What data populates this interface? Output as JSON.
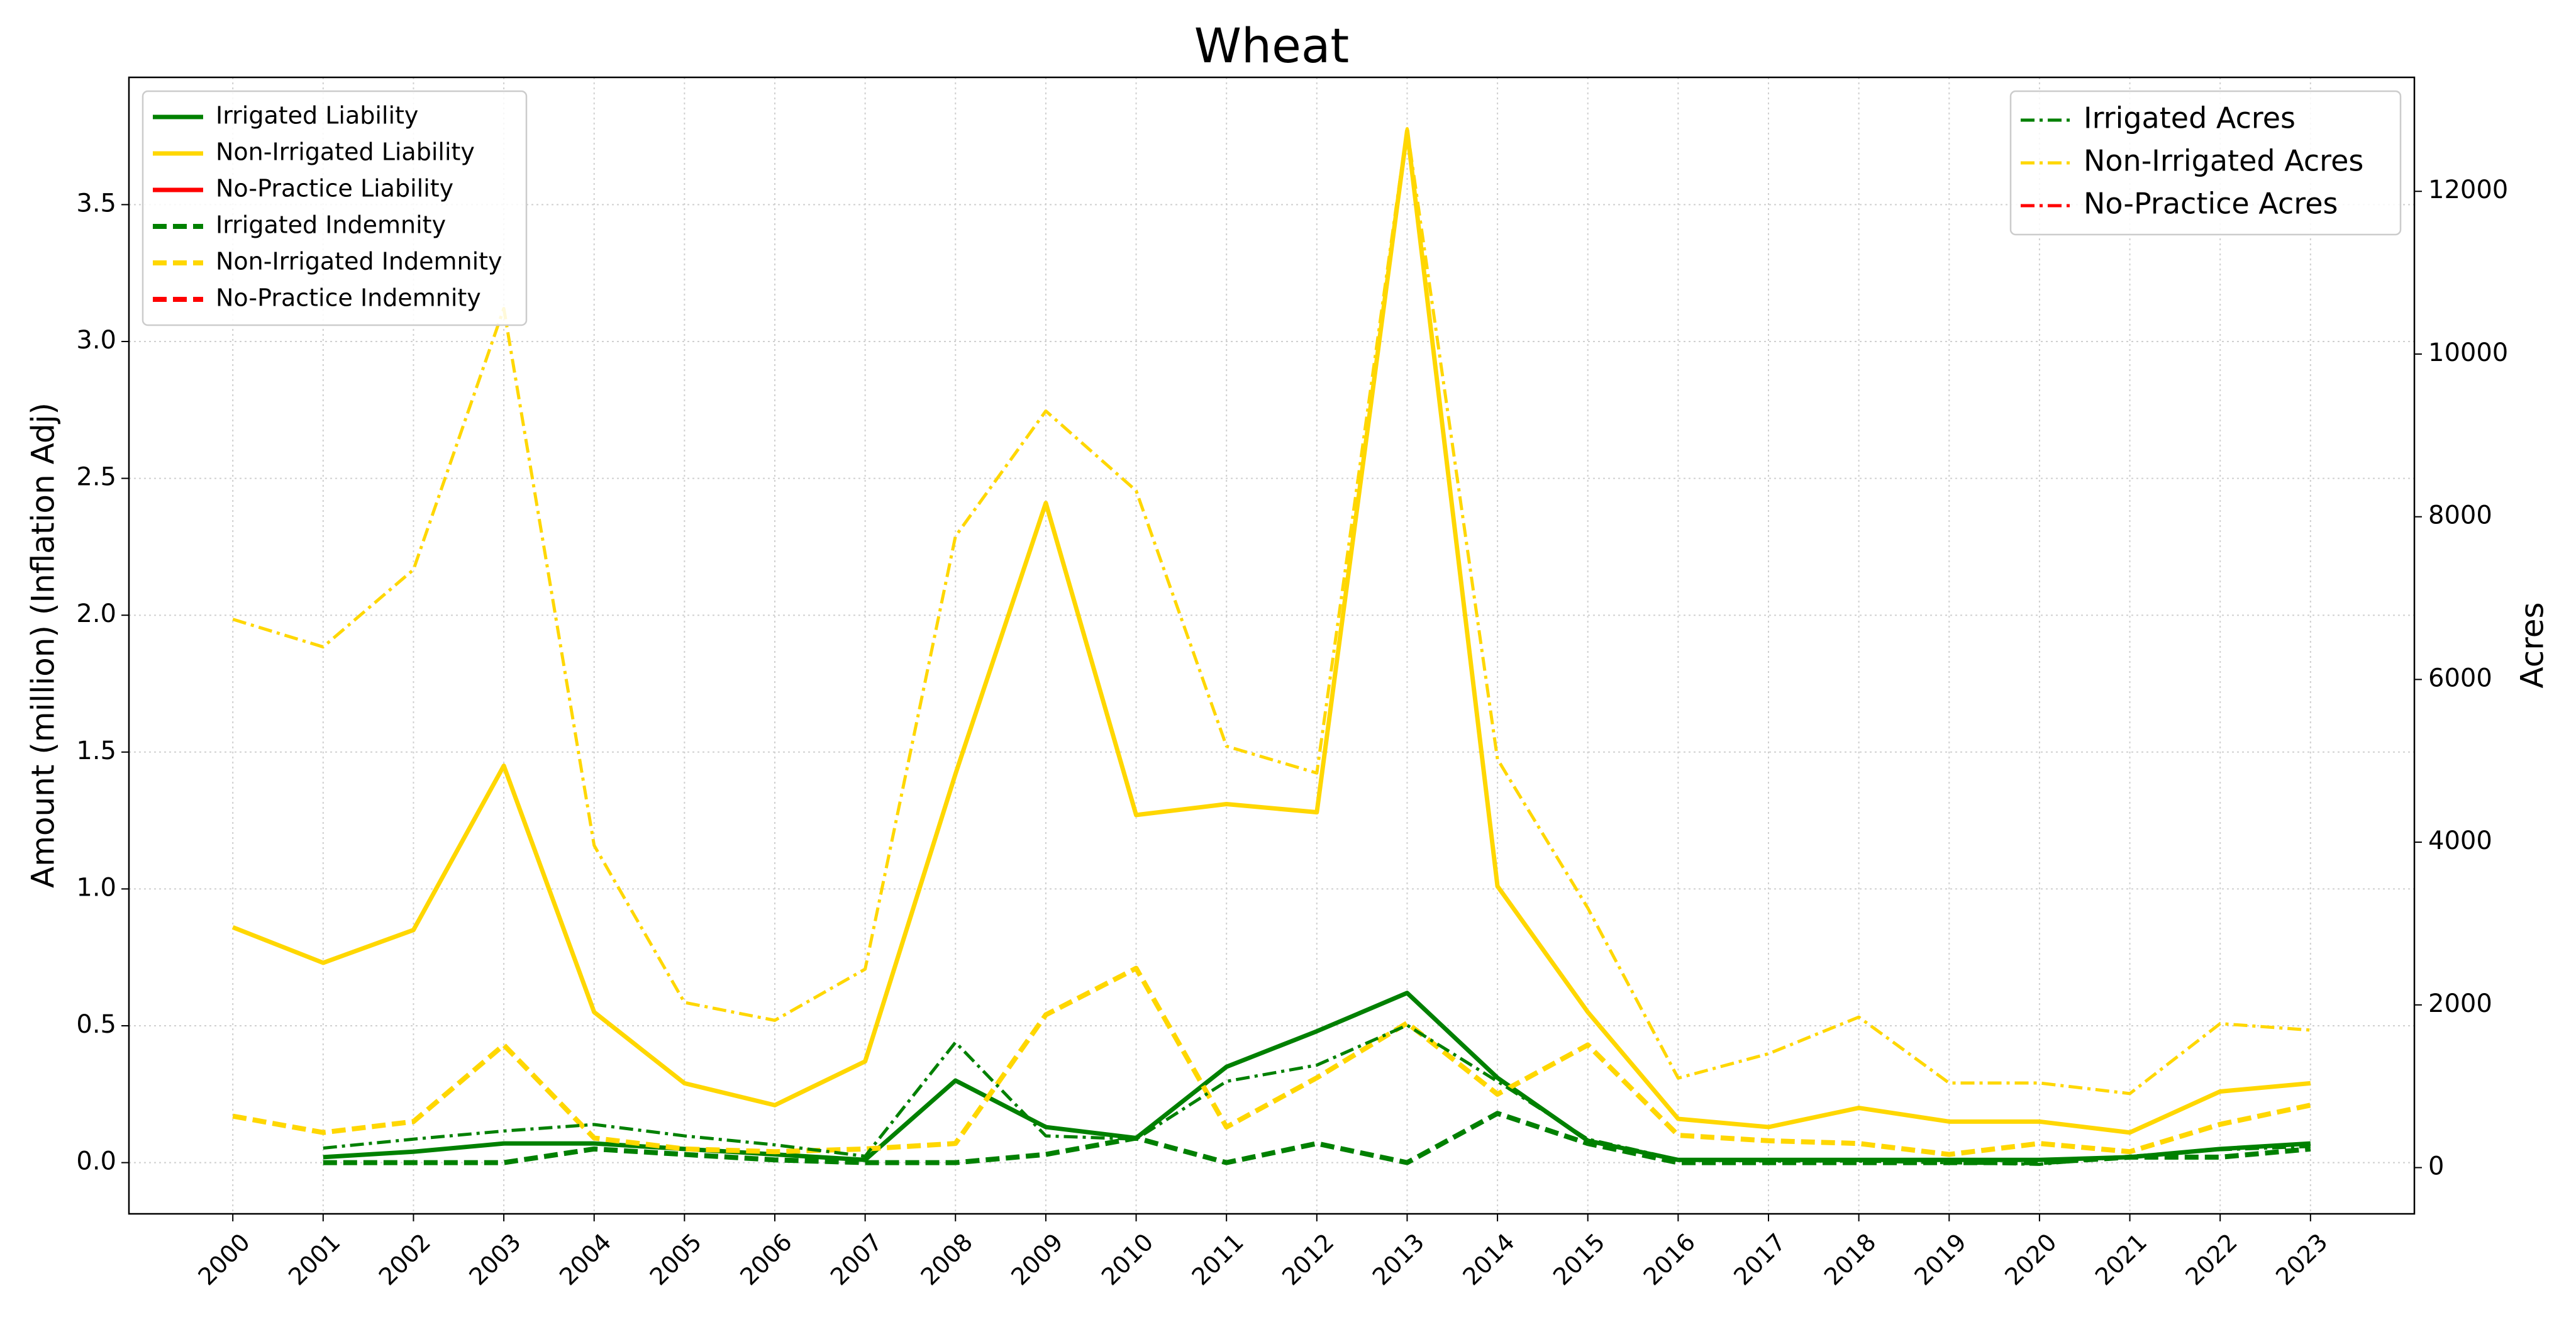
{
  "chart_data": {
    "type": "line",
    "title": "Wheat",
    "y_label": "Amount (million) (Inflation Adj)",
    "y2_label": "Acres",
    "x": [
      2000,
      2001,
      2002,
      2003,
      2004,
      2005,
      2006,
      2007,
      2008,
      2009,
      2010,
      2011,
      2012,
      2013,
      2014,
      2015,
      2016,
      2017,
      2018,
      2019,
      2020,
      2021,
      2022,
      2023
    ],
    "xlim": [
      1998.85,
      2024.15
    ],
    "xticks": [
      2000,
      2001,
      2002,
      2003,
      2004,
      2005,
      2006,
      2007,
      2008,
      2009,
      2010,
      2011,
      2012,
      2013,
      2014,
      2015,
      2016,
      2017,
      2018,
      2019,
      2020,
      2021,
      2022,
      2023
    ],
    "ylim": [
      -0.187,
      3.965
    ],
    "yticks": [
      {
        "value": 0,
        "label": "0.0"
      },
      0.5,
      {
        "value": 1,
        "label": "1.0"
      },
      1.5,
      {
        "value": 2,
        "label": "2.0"
      },
      2.5,
      {
        "value": 3,
        "label": "3.0"
      },
      3.5
    ],
    "y2lim": [
      -568,
      13401
    ],
    "y2ticks": [
      0,
      2000,
      4000,
      6000,
      8000,
      10000,
      12000
    ],
    "grid": true,
    "legend_loc": "upper left",
    "legend2_loc": "upper right",
    "series": [
      {
        "name": "Irrigated Liability",
        "color": "#008000",
        "linestyle": "solid",
        "values": [
          null,
          0.02,
          0.04,
          0.07,
          0.07,
          0.05,
          0.03,
          0.01,
          0.3,
          0.13,
          0.09,
          0.35,
          0.48,
          0.62,
          0.31,
          0.08,
          0.01,
          0.01,
          0.01,
          0.01,
          0.01,
          0.02,
          0.05,
          0.07
        ]
      },
      {
        "name": "Non-Irrigated Liability",
        "color": "#ffd700",
        "linestyle": "solid",
        "values": [
          0.86,
          0.73,
          0.85,
          1.45,
          0.55,
          0.29,
          0.21,
          0.37,
          1.42,
          2.41,
          1.27,
          1.31,
          1.28,
          3.77,
          1.01,
          0.55,
          0.16,
          0.13,
          0.2,
          0.15,
          0.15,
          0.11,
          0.26,
          0.29
        ]
      },
      {
        "name": "No-Practice Liability",
        "color": "#ff0000",
        "linestyle": "solid",
        "values": [
          null,
          null,
          null,
          null,
          null,
          null,
          null,
          null,
          null,
          null,
          null,
          null,
          null,
          null,
          null,
          null,
          null,
          null,
          null,
          null,
          null,
          null,
          null,
          null
        ]
      },
      {
        "name": "Irrigated Indemnity",
        "color": "#008000",
        "linestyle": "dashed",
        "values": [
          null,
          0,
          0,
          0,
          0.05,
          0.03,
          0.01,
          0,
          0,
          0.03,
          0.09,
          0,
          0.07,
          0,
          0.18,
          0.07,
          0,
          0,
          0,
          0,
          0,
          0.02,
          0.02,
          0.05
        ]
      },
      {
        "name": "Non-Irrigated Indemnity",
        "color": "#ffd700",
        "linestyle": "dashed",
        "values": [
          0.17,
          0.11,
          0.15,
          0.43,
          0.09,
          0.05,
          0.04,
          0.05,
          0.07,
          0.54,
          0.71,
          0.13,
          0.31,
          0.51,
          0.25,
          0.43,
          0.1,
          0.08,
          0.07,
          0.03,
          0.07,
          0.04,
          0.14,
          0.21
        ]
      },
      {
        "name": "No-Practice Indemnity",
        "color": "#ff0000",
        "linestyle": "dashed",
        "values": [
          null,
          null,
          null,
          null,
          null,
          null,
          null,
          null,
          null,
          null,
          null,
          null,
          null,
          null,
          null,
          null,
          null,
          null,
          null,
          null,
          null,
          null,
          null,
          null
        ]
      },
      {
        "name": "Irrigated Acres",
        "color": "#008000",
        "linestyle": "dashdot",
        "axis": "y2",
        "values": [
          null,
          240,
          350,
          450,
          530,
          390,
          280,
          140,
          1540,
          390,
          350,
          1060,
          1260,
          1750,
          1060,
          350,
          100,
          80,
          80,
          60,
          40,
          140,
          220,
          260
        ]
      },
      {
        "name": "Non-Irrigated Acres",
        "color": "#ffd700",
        "linestyle": "dashdot",
        "axis": "y2",
        "values": [
          6740,
          6400,
          7350,
          10560,
          3960,
          2030,
          1810,
          2440,
          7760,
          9300,
          8320,
          5180,
          4850,
          12770,
          5020,
          3190,
          1100,
          1400,
          1850,
          1040,
          1040,
          910,
          1770,
          1690
        ]
      },
      {
        "name": "No-Practice Acres",
        "color": "#ff0000",
        "linestyle": "dashdot",
        "axis": "y2",
        "values": [
          null,
          null,
          null,
          null,
          null,
          null,
          null,
          null,
          null,
          null,
          null,
          null,
          null,
          null,
          null,
          null,
          null,
          null,
          null,
          null,
          null,
          null,
          null,
          null
        ]
      }
    ]
  }
}
